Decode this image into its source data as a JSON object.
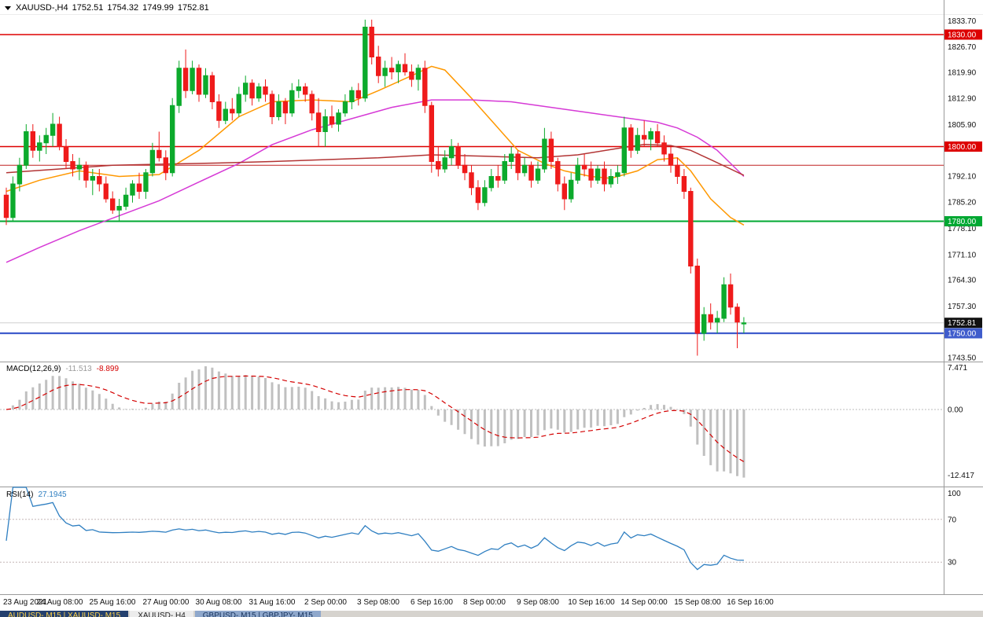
{
  "header": {
    "symbol_title": "XAUUSD-,H4",
    "open": "1752.51",
    "high": "1754.32",
    "low": "1749.99",
    "close": "1752.81"
  },
  "colors": {
    "candle_up": "#0caa2c",
    "candle_down": "#ef1b1b",
    "hline_red": "#dd0000",
    "hline_thin_red": "#c02020",
    "hline_green": "#00a832",
    "hline_blue": "#3f5ccc",
    "ma_fast": "#ff9800",
    "ma_slow": "#d63ad6",
    "ma_long": "#b23434",
    "macd_hist": "#c0c0c0",
    "macd_signal": "#d40000",
    "rsi_line": "#2f7fc1",
    "current_price_badge": "#111111",
    "axis_text": "#111111"
  },
  "chart_data": {
    "type": "candlestick",
    "symbol": "XAUUSD-",
    "timeframe": "H4",
    "main": {
      "ylim": [
        1742.4,
        1839.3
      ],
      "grid": false,
      "current_price": 1752.81,
      "price_axis_labels": [
        "1833.70",
        "1826.70",
        "1819.90",
        "1812.90",
        "1805.90",
        "1792.10",
        "1785.20",
        "1778.10",
        "1771.10",
        "1764.30",
        "1757.30",
        "1743.50"
      ],
      "h_lines": [
        {
          "price": 1830.0,
          "color": "#dd0000",
          "width": 1.4,
          "badge": true
        },
        {
          "price": 1800.0,
          "color": "#dd0000",
          "width": 1.4,
          "badge": true
        },
        {
          "price": 1795.0,
          "color": "#c02020",
          "width": 1,
          "badge": false
        },
        {
          "price": 1780.0,
          "color": "#00a832",
          "width": 2,
          "badge": true
        },
        {
          "price": 1750.0,
          "color": "#3f5ccc",
          "width": 2.2,
          "badge": true
        }
      ],
      "moving_averages": [
        {
          "name": "ma-fast-orange",
          "color": "#ff9800",
          "points": [
            [
              0,
              1788
            ],
            [
              5,
              1791
            ],
            [
              11,
              1793.5
            ],
            [
              17,
              1792
            ],
            [
              23,
              1792.5
            ],
            [
              29,
              1799
            ],
            [
              35,
              1808
            ],
            [
              40,
              1812
            ],
            [
              46,
              1812.5
            ],
            [
              52,
              1812
            ],
            [
              56,
              1815
            ],
            [
              61,
              1819
            ],
            [
              64,
              1821.5
            ],
            [
              66,
              1820.5
            ],
            [
              70,
              1813
            ],
            [
              74,
              1805
            ],
            [
              77,
              1799
            ],
            [
              81,
              1795.5
            ],
            [
              84,
              1793.5
            ],
            [
              88,
              1792
            ],
            [
              91,
              1791.5
            ],
            [
              95,
              1793.5
            ],
            [
              98,
              1796.5
            ],
            [
              101,
              1797
            ],
            [
              103,
              1793.5
            ],
            [
              106,
              1786
            ],
            [
              109,
              1781
            ],
            [
              111,
              1779
            ]
          ]
        },
        {
          "name": "ma-slow-magenta",
          "color": "#d63ad6",
          "points": [
            [
              0,
              1769
            ],
            [
              5,
              1773
            ],
            [
              11,
              1777.5
            ],
            [
              17,
              1781.5
            ],
            [
              23,
              1785.5
            ],
            [
              29,
              1790.5
            ],
            [
              35,
              1795.5
            ],
            [
              40,
              1800.5
            ],
            [
              46,
              1804.5
            ],
            [
              52,
              1807.5
            ],
            [
              58,
              1810.5
            ],
            [
              64,
              1812.5
            ],
            [
              70,
              1812.5
            ],
            [
              76,
              1812
            ],
            [
              82,
              1810.5
            ],
            [
              88,
              1809
            ],
            [
              94,
              1807.5
            ],
            [
              98,
              1806.5
            ],
            [
              101,
              1805
            ],
            [
              104,
              1802.5
            ],
            [
              107,
              1799
            ],
            [
              109,
              1795.5
            ],
            [
              111,
              1792
            ]
          ]
        },
        {
          "name": "ma-long-firebrick",
          "color": "#b23434",
          "points": [
            [
              0,
              1793
            ],
            [
              8,
              1794
            ],
            [
              16,
              1795
            ],
            [
              24,
              1795.3
            ],
            [
              32,
              1795.6
            ],
            [
              40,
              1796
            ],
            [
              48,
              1796.5
            ],
            [
              56,
              1797
            ],
            [
              64,
              1797.8
            ],
            [
              72,
              1797.4
            ],
            [
              80,
              1797
            ],
            [
              86,
              1797.8
            ],
            [
              92,
              1799.5
            ],
            [
              96,
              1800.6
            ],
            [
              100,
              1800.3
            ],
            [
              103,
              1799
            ],
            [
              106,
              1796.5
            ],
            [
              109,
              1794
            ],
            [
              111,
              1792.3
            ]
          ]
        }
      ],
      "candles": [
        [
          1787,
          1789,
          1779,
          1781
        ],
        [
          1781,
          1792,
          1780,
          1790
        ],
        [
          1790,
          1797,
          1788,
          1795
        ],
        [
          1795,
          1806,
          1794,
          1804
        ],
        [
          1804,
          1806,
          1797,
          1799
        ],
        [
          1799,
          1803,
          1796,
          1801
        ],
        [
          1801,
          1805,
          1798,
          1803
        ],
        [
          1803,
          1809,
          1800,
          1806
        ],
        [
          1806,
          1808,
          1799,
          1800
        ],
        [
          1800,
          1802,
          1794,
          1796
        ],
        [
          1796,
          1798,
          1792,
          1794
        ],
        [
          1794,
          1797,
          1791,
          1795
        ],
        [
          1795,
          1796,
          1789,
          1791
        ],
        [
          1791,
          1794,
          1787,
          1792
        ],
        [
          1792,
          1794,
          1788,
          1790
        ],
        [
          1790,
          1792,
          1785,
          1786
        ],
        [
          1786,
          1788,
          1782,
          1783
        ],
        [
          1783,
          1786,
          1780,
          1784
        ],
        [
          1784,
          1789,
          1783,
          1787
        ],
        [
          1787,
          1791,
          1785,
          1790
        ],
        [
          1790,
          1793,
          1786,
          1788
        ],
        [
          1788,
          1794,
          1786,
          1793
        ],
        [
          1793,
          1801,
          1792,
          1799
        ],
        [
          1799,
          1804,
          1796,
          1797
        ],
        [
          1797,
          1799,
          1791,
          1793
        ],
        [
          1793,
          1813,
          1792,
          1811
        ],
        [
          1811,
          1823,
          1809,
          1821
        ],
        [
          1821,
          1826,
          1813,
          1815
        ],
        [
          1815,
          1823,
          1814,
          1821
        ],
        [
          1821,
          1822,
          1812,
          1814
        ],
        [
          1814,
          1821,
          1813,
          1819
        ],
        [
          1819,
          1820,
          1810,
          1812
        ],
        [
          1812,
          1814,
          1805,
          1807
        ],
        [
          1807,
          1812,
          1806,
          1810
        ],
        [
          1810,
          1813,
          1807,
          1809
        ],
        [
          1809,
          1816,
          1808,
          1814
        ],
        [
          1814,
          1819,
          1812,
          1817
        ],
        [
          1817,
          1818,
          1811,
          1813
        ],
        [
          1813,
          1817,
          1812,
          1816
        ],
        [
          1816,
          1818,
          1812,
          1814
        ],
        [
          1814,
          1815,
          1806,
          1808
        ],
        [
          1808,
          1814,
          1807,
          1812
        ],
        [
          1812,
          1813,
          1806,
          1809
        ],
        [
          1809,
          1817,
          1808,
          1815
        ],
        [
          1815,
          1818,
          1813,
          1816
        ],
        [
          1816,
          1817,
          1812,
          1814
        ],
        [
          1814,
          1815,
          1807,
          1809
        ],
        [
          1809,
          1813,
          1800,
          1804
        ],
        [
          1804,
          1810,
          1800,
          1808
        ],
        [
          1808,
          1811,
          1805,
          1806
        ],
        [
          1806,
          1810,
          1804,
          1809
        ],
        [
          1809,
          1814,
          1808,
          1812
        ],
        [
          1812,
          1816,
          1810,
          1815
        ],
        [
          1815,
          1817,
          1811,
          1813
        ],
        [
          1813,
          1834,
          1812,
          1832
        ],
        [
          1832,
          1834,
          1822,
          1824
        ],
        [
          1824,
          1827,
          1817,
          1819
        ],
        [
          1819,
          1823,
          1816,
          1821
        ],
        [
          1821,
          1824,
          1818,
          1820
        ],
        [
          1820,
          1823,
          1817,
          1822
        ],
        [
          1822,
          1825,
          1819,
          1820
        ],
        [
          1820,
          1822,
          1816,
          1818
        ],
        [
          1818,
          1822,
          1815,
          1821
        ],
        [
          1821,
          1823,
          1809,
          1811
        ],
        [
          1811,
          1812,
          1793,
          1796
        ],
        [
          1796,
          1800,
          1792,
          1794
        ],
        [
          1794,
          1799,
          1793,
          1797
        ],
        [
          1797,
          1802,
          1795,
          1800
        ],
        [
          1800,
          1801,
          1794,
          1795
        ],
        [
          1795,
          1798,
          1791,
          1793
        ],
        [
          1793,
          1795,
          1787,
          1789
        ],
        [
          1789,
          1791,
          1783,
          1785
        ],
        [
          1785,
          1791,
          1784,
          1789
        ],
        [
          1789,
          1794,
          1788,
          1792
        ],
        [
          1792,
          1795,
          1789,
          1791
        ],
        [
          1791,
          1798,
          1790,
          1796
        ],
        [
          1796,
          1800,
          1794,
          1798
        ],
        [
          1798,
          1799,
          1791,
          1793
        ],
        [
          1793,
          1797,
          1792,
          1795
        ],
        [
          1795,
          1796,
          1789,
          1791
        ],
        [
          1791,
          1796,
          1790,
          1794
        ],
        [
          1794,
          1805,
          1793,
          1802
        ],
        [
          1802,
          1804,
          1794,
          1796
        ],
        [
          1796,
          1797,
          1788,
          1790
        ],
        [
          1790,
          1792,
          1783,
          1786
        ],
        [
          1786,
          1793,
          1785,
          1791
        ],
        [
          1791,
          1797,
          1790,
          1795
        ],
        [
          1795,
          1798,
          1792,
          1794
        ],
        [
          1794,
          1796,
          1789,
          1791
        ],
        [
          1791,
          1795,
          1790,
          1794
        ],
        [
          1794,
          1796,
          1788,
          1790
        ],
        [
          1790,
          1794,
          1789,
          1792
        ],
        [
          1792,
          1795,
          1790,
          1793
        ],
        [
          1793,
          1808,
          1792,
          1805
        ],
        [
          1805,
          1806,
          1797,
          1799
        ],
        [
          1799,
          1805,
          1798,
          1803
        ],
        [
          1803,
          1807,
          1800,
          1802
        ],
        [
          1802,
          1805,
          1799,
          1804
        ],
        [
          1804,
          1806,
          1800,
          1801
        ],
        [
          1801,
          1803,
          1796,
          1798
        ],
        [
          1798,
          1800,
          1793,
          1795
        ],
        [
          1795,
          1797,
          1790,
          1792
        ],
        [
          1792,
          1794,
          1786,
          1788
        ],
        [
          1788,
          1789,
          1766,
          1768
        ],
        [
          1768,
          1770,
          1744,
          1750
        ],
        [
          1750,
          1757,
          1748,
          1755
        ],
        [
          1755,
          1758,
          1751,
          1753
        ],
        [
          1753,
          1756,
          1750,
          1754
        ],
        [
          1754,
          1765,
          1753,
          1763
        ],
        [
          1763,
          1766,
          1755,
          1757
        ],
        [
          1757,
          1758,
          1746,
          1753
        ],
        [
          1752.51,
          1754.32,
          1749.99,
          1752.81
        ]
      ]
    },
    "macd": {
      "label": "MACD(12,26,9)",
      "value": "-11.513",
      "signal_value": "-8.899",
      "params": [
        12,
        26,
        9
      ],
      "axis_labels": [
        "7.471",
        "0.00",
        "-12.417"
      ],
      "ylim": [
        -14.3,
        9.0
      ]
    },
    "rsi": {
      "label": "RSI(14)",
      "value": "27.1945",
      "period": 14,
      "levels": [
        70,
        30
      ],
      "axis_labels": [
        "100",
        "70",
        "30"
      ],
      "ylim": [
        0,
        100
      ]
    },
    "time_axis": [
      "23 Aug 2021",
      "24 Aug 08:00",
      "25 Aug 16:00",
      "27 Aug 00:00",
      "30 Aug 08:00",
      "31 Aug 16:00",
      "2 Sep 00:00",
      "3 Sep 08:00",
      "6 Sep 16:00",
      "8 Sep 00:00",
      "9 Sep 08:00",
      "10 Sep 16:00",
      "14 Sep 00:00",
      "15 Sep 08:00",
      "16 Sep 16:00"
    ]
  },
  "bottom_tabs": [
    {
      "label": "AUDUSD-,M15 | XAUUSD-,M15"
    },
    {
      "label": "XAUUSD-,H4"
    },
    {
      "label": "GBPUSD-,M15 | GBPJPY-,M15"
    }
  ]
}
